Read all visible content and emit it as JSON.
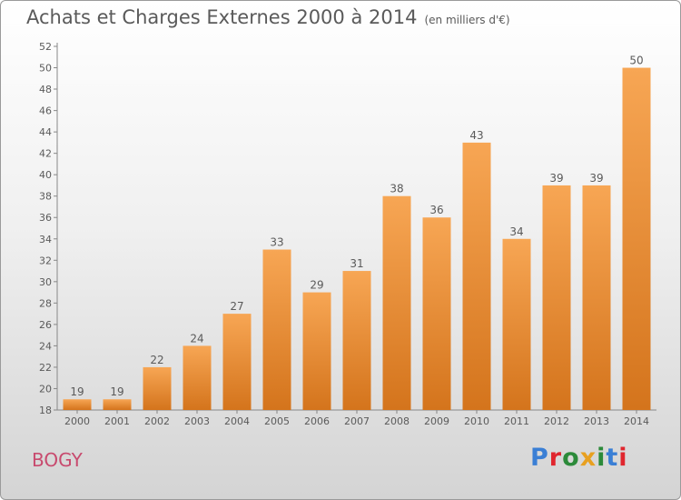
{
  "title": "Achats et Charges Externes 2000 à 2014",
  "subtitle": "(en milliers d'€)",
  "commune": "BOGY",
  "logo": {
    "text": "Proxiti",
    "letter_colors": [
      "#3a7fd5",
      "#e0262e",
      "#2c8a3a",
      "#e8a020",
      "#2c8a3a",
      "#3a7fd5",
      "#e0262e"
    ]
  },
  "colors": {
    "bar_top": "#f7a654",
    "bar_bottom": "#d4741c",
    "text": "#5a5a5a",
    "grid": "#c8c8c8"
  },
  "chart_data": {
    "type": "bar",
    "categories": [
      "2000",
      "2001",
      "2002",
      "2003",
      "2004",
      "2005",
      "2006",
      "2007",
      "2008",
      "2009",
      "2010",
      "2011",
      "2012",
      "2013",
      "2014"
    ],
    "values": [
      19,
      19,
      22,
      24,
      27,
      33,
      29,
      31,
      38,
      36,
      43,
      34,
      39,
      39,
      50
    ],
    "ylim": [
      18,
      52
    ],
    "yticks": [
      18,
      20,
      22,
      24,
      26,
      28,
      30,
      32,
      34,
      36,
      38,
      40,
      42,
      44,
      46,
      48,
      50,
      52
    ],
    "ytick_labels": [
      "18",
      "20",
      "22",
      "24",
      "26",
      "28",
      "30",
      "32",
      "34",
      "36",
      "38",
      "40",
      "42",
      "44",
      "46",
      "48",
      "50",
      "52"
    ],
    "data_labels": [
      "19",
      "19",
      "22",
      "24",
      "27",
      "33",
      "29",
      "31",
      "38",
      "36",
      "43",
      "34",
      "39",
      "39",
      "50"
    ],
    "grid": false,
    "legend": "none"
  }
}
